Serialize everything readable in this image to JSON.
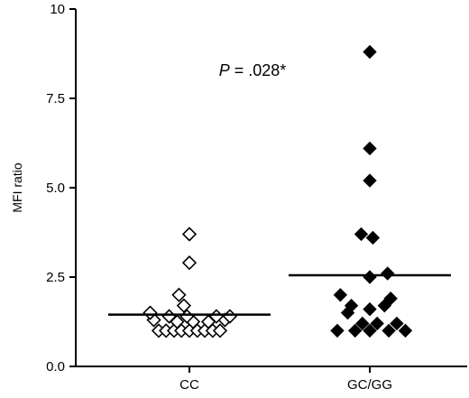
{
  "chart_data": {
    "type": "scatter",
    "ylabel": "MFI ratio",
    "xlabel": "",
    "ylim": [
      0,
      10
    ],
    "yticks": [
      0.0,
      2.5,
      5.0,
      7.5,
      10
    ],
    "ytick_labels": [
      "0.0",
      "2.5",
      "5.0",
      "7.5",
      "10"
    ],
    "categories": [
      "CC",
      "GC/GG"
    ],
    "annotation": {
      "prefix": "P",
      "text": " = .028*"
    },
    "grid": false,
    "legend": "none",
    "series": [
      {
        "category": "CC",
        "marker": "open-diamond",
        "color": "#000000",
        "median": 1.45,
        "points": [
          {
            "offset": -0.5,
            "y": 1.0
          },
          {
            "offset": -0.38,
            "y": 1.0
          },
          {
            "offset": -0.25,
            "y": 1.0
          },
          {
            "offset": -0.13,
            "y": 1.0
          },
          {
            "offset": 0.0,
            "y": 1.0
          },
          {
            "offset": 0.13,
            "y": 1.0
          },
          {
            "offset": 0.25,
            "y": 1.0
          },
          {
            "offset": 0.38,
            "y": 1.0
          },
          {
            "offset": 0.5,
            "y": 1.0
          },
          {
            "offset": -0.58,
            "y": 1.3
          },
          {
            "offset": -0.2,
            "y": 1.25
          },
          {
            "offset": 0.06,
            "y": 1.25
          },
          {
            "offset": 0.31,
            "y": 1.25
          },
          {
            "offset": 0.58,
            "y": 1.3
          },
          {
            "offset": -0.64,
            "y": 1.5
          },
          {
            "offset": -0.33,
            "y": 1.4
          },
          {
            "offset": -0.04,
            "y": 1.4
          },
          {
            "offset": 0.44,
            "y": 1.4
          },
          {
            "offset": 0.66,
            "y": 1.4
          },
          {
            "offset": -0.09,
            "y": 1.7
          },
          {
            "offset": -0.17,
            "y": 2.0
          },
          {
            "offset": 0.0,
            "y": 2.9
          },
          {
            "offset": 0.0,
            "y": 3.7
          }
        ]
      },
      {
        "category": "GC/GG",
        "marker": "filled-diamond",
        "color": "#000000",
        "median": 2.55,
        "points": [
          {
            "offset": -0.53,
            "y": 1.0
          },
          {
            "offset": -0.24,
            "y": 1.0
          },
          {
            "offset": 0.0,
            "y": 1.0
          },
          {
            "offset": 0.31,
            "y": 1.0
          },
          {
            "offset": 0.58,
            "y": 1.0
          },
          {
            "offset": -0.12,
            "y": 1.2
          },
          {
            "offset": 0.12,
            "y": 1.2
          },
          {
            "offset": 0.44,
            "y": 1.2
          },
          {
            "offset": -0.36,
            "y": 1.5
          },
          {
            "offset": 0.0,
            "y": 1.6
          },
          {
            "offset": -0.3,
            "y": 1.7
          },
          {
            "offset": 0.24,
            "y": 1.7
          },
          {
            "offset": 0.34,
            "y": 1.9
          },
          {
            "offset": -0.48,
            "y": 2.0
          },
          {
            "offset": 0.0,
            "y": 2.5
          },
          {
            "offset": 0.29,
            "y": 2.6
          },
          {
            "offset": 0.05,
            "y": 3.6
          },
          {
            "offset": -0.14,
            "y": 3.7
          },
          {
            "offset": 0.0,
            "y": 5.2
          },
          {
            "offset": 0.0,
            "y": 6.1
          },
          {
            "offset": 0.0,
            "y": 8.8
          }
        ]
      }
    ]
  }
}
